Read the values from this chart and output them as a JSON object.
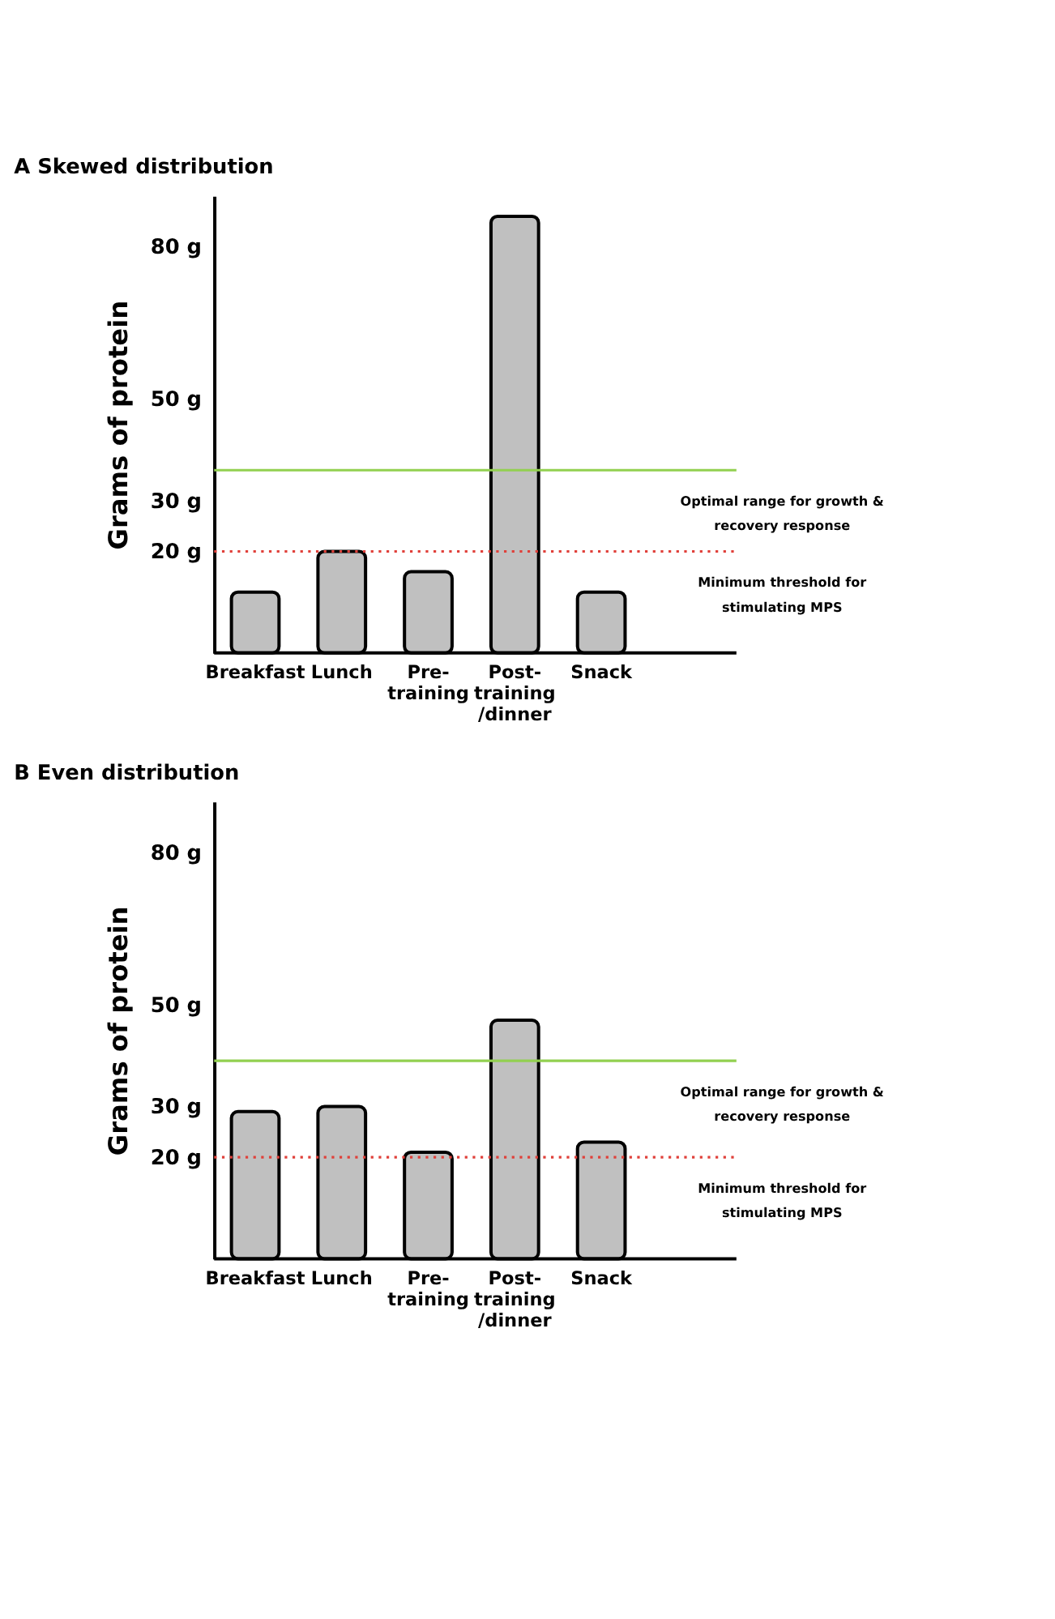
{
  "chart_data": [
    {
      "type": "bar",
      "title": "A  Skewed distribution",
      "ylabel": "Grams of protein",
      "categories": [
        "Breakfast",
        "Lunch",
        "Pre-\ntraining",
        "Post-\ntraining\n/dinner",
        "Snack"
      ],
      "values": [
        12,
        20,
        16,
        86,
        12
      ],
      "color": "#c0c0c0",
      "ylim": [
        0,
        90
      ],
      "yticks": [
        {
          "value": 20,
          "label": "20 g"
        },
        {
          "value": 30,
          "label": "30 g"
        },
        {
          "value": 50,
          "label": "50 g"
        },
        {
          "value": 80,
          "label": "80 g"
        }
      ],
      "ref_lines": [
        {
          "axis": "y",
          "value": 36,
          "label": "Optimal range for growth & recovery response",
          "color": "#92d050",
          "line_style": "solid"
        },
        {
          "axis": "y",
          "value": 20,
          "label": "Minimum threshold for stimulating MPS",
          "color": "#e0403a",
          "line_style": "dotted"
        }
      ],
      "grid": false
    },
    {
      "type": "bar",
      "title": "B  Even distribution",
      "ylabel": "Grams of protein",
      "categories": [
        "Breakfast",
        "Lunch",
        "Pre-\ntraining",
        "Post-\ntraining\n/dinner",
        "Snack"
      ],
      "values": [
        29,
        30,
        21,
        47,
        23
      ],
      "color": "#c0c0c0",
      "ylim": [
        0,
        90
      ],
      "yticks": [
        {
          "value": 20,
          "label": "20 g"
        },
        {
          "value": 30,
          "label": "30 g"
        },
        {
          "value": 50,
          "label": "50 g"
        },
        {
          "value": 80,
          "label": "80 g"
        }
      ],
      "ref_lines": [
        {
          "axis": "y",
          "value": 39,
          "label": "Optimal range for growth & recovery response",
          "color": "#92d050",
          "line_style": "solid"
        },
        {
          "axis": "y",
          "value": 20,
          "label": "Minimum threshold for stimulating MPS",
          "color": "#e0403a",
          "line_style": "dotted"
        }
      ],
      "grid": false
    }
  ]
}
